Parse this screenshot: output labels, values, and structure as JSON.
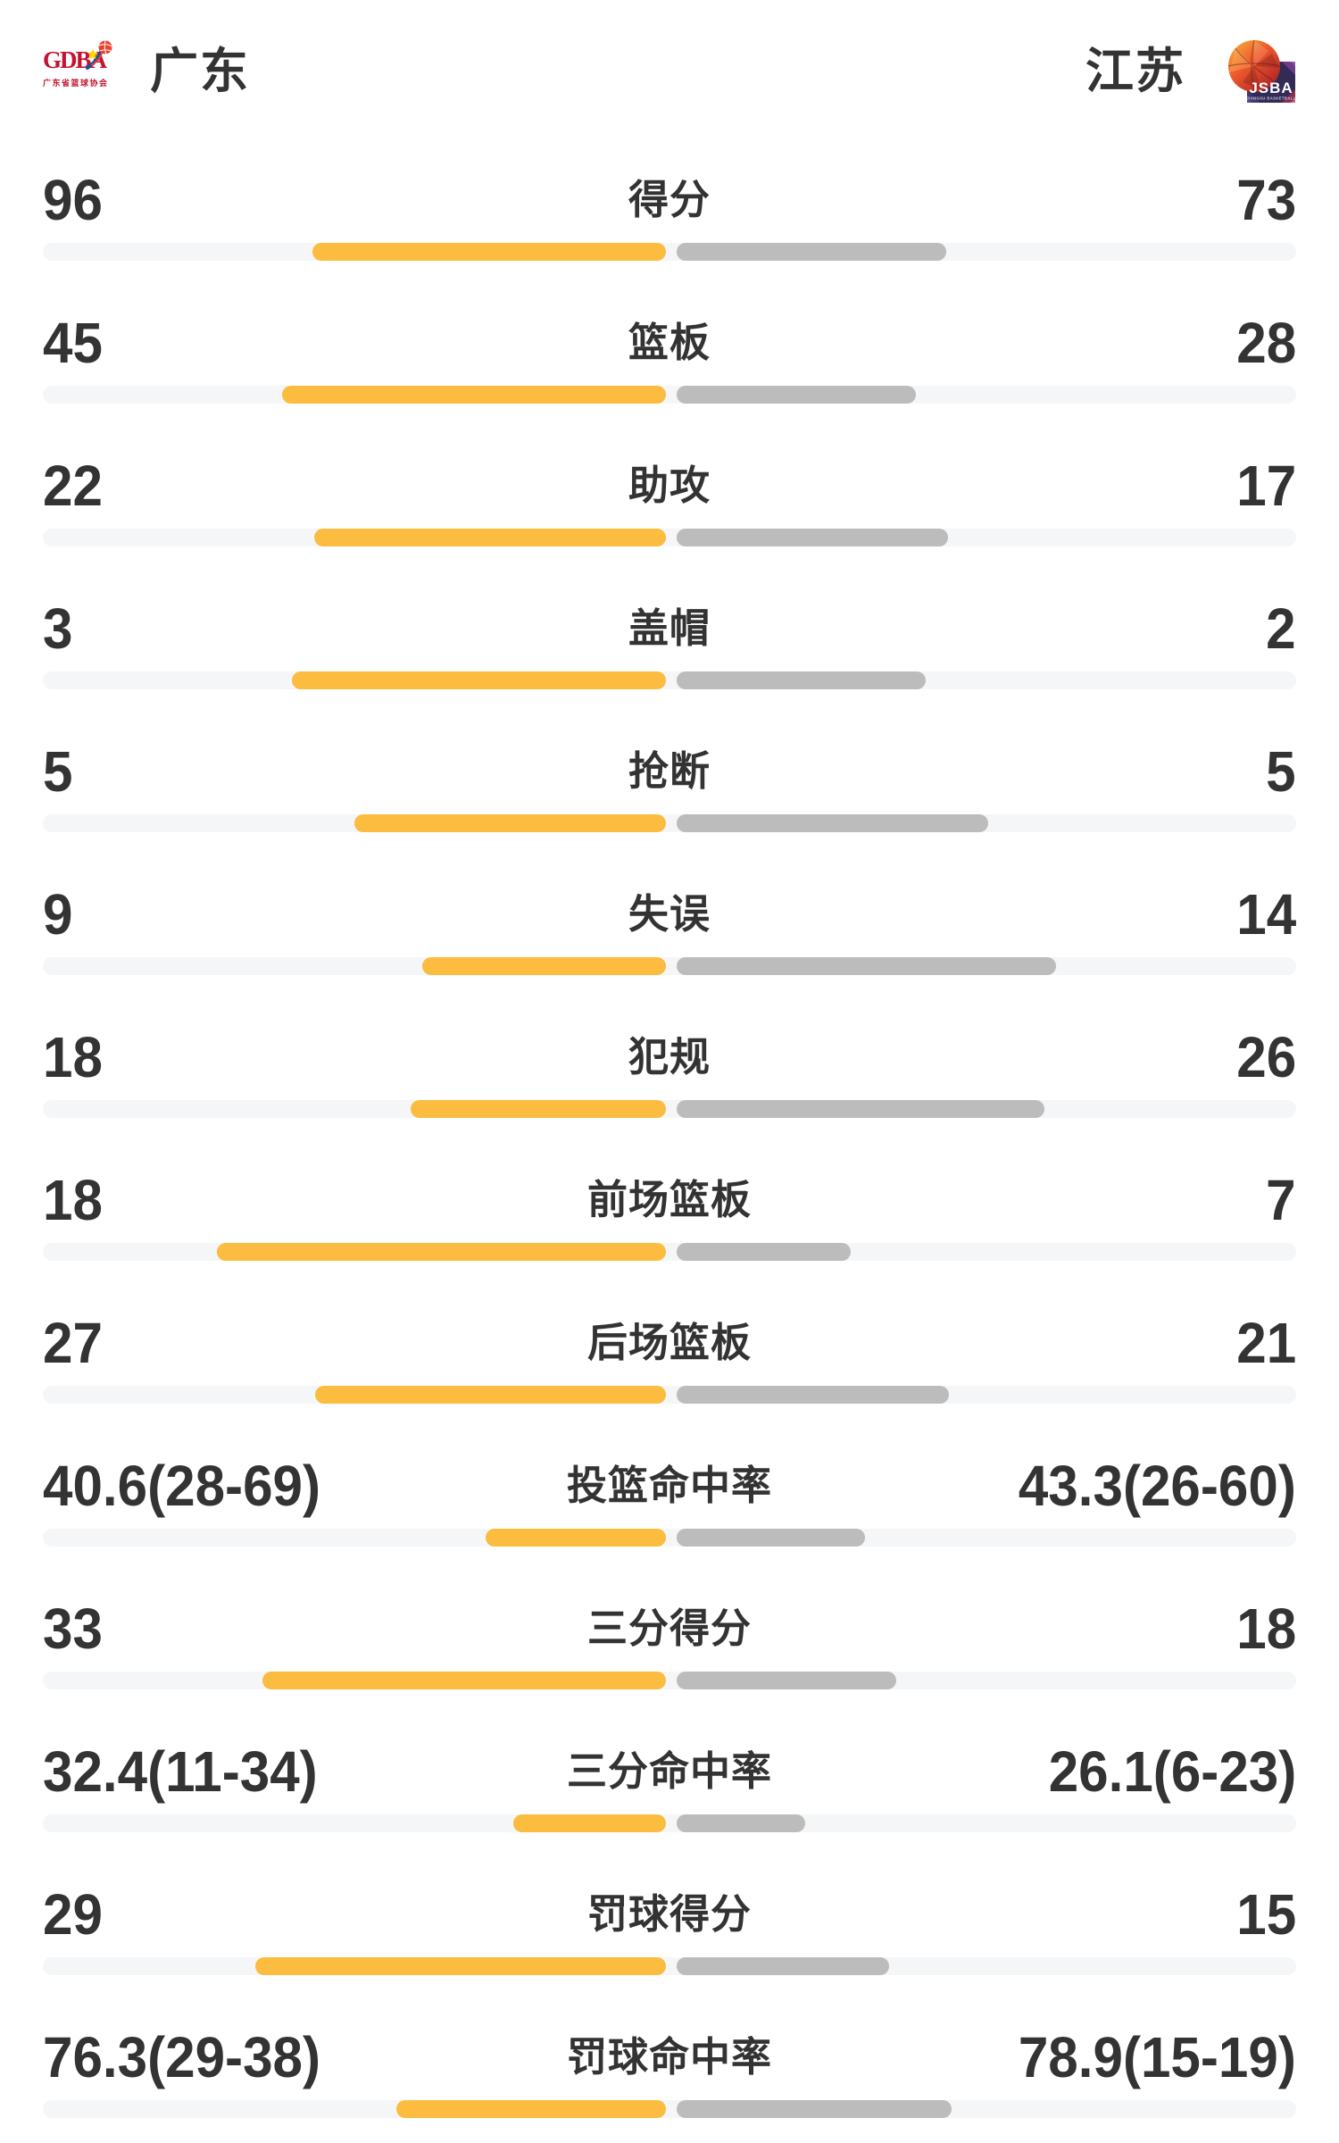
{
  "header": {
    "left_team": {
      "name": "广东",
      "logo_text": "GDBA",
      "logo_subtext": "广东省篮球协会"
    },
    "right_team": {
      "name": "江苏",
      "logo_text": "JSBA",
      "logo_subtext": "JIANGSU BASKETBALL"
    }
  },
  "colors": {
    "left_bar": "#fbbc3f",
    "right_bar": "#bcbcbc",
    "track": "#f5f6f8",
    "text": "#333333",
    "gdba_red": "#c41230",
    "jsba_navy": "#322b55"
  },
  "rows": [
    {
      "label": "得分",
      "left": "96",
      "right": "73",
      "left_value": 96,
      "right_value": 73,
      "kind": "count"
    },
    {
      "label": "篮板",
      "left": "45",
      "right": "28",
      "left_value": 45,
      "right_value": 28,
      "kind": "count"
    },
    {
      "label": "助攻",
      "left": "22",
      "right": "17",
      "left_value": 22,
      "right_value": 17,
      "kind": "count"
    },
    {
      "label": "盖帽",
      "left": "3",
      "right": "2",
      "left_value": 3,
      "right_value": 2,
      "kind": "count"
    },
    {
      "label": "抢断",
      "left": "5",
      "right": "5",
      "left_value": 5,
      "right_value": 5,
      "kind": "count"
    },
    {
      "label": "失误",
      "left": "9",
      "right": "14",
      "left_value": 9,
      "right_value": 14,
      "kind": "count"
    },
    {
      "label": "犯规",
      "left": "18",
      "right": "26",
      "left_value": 18,
      "right_value": 26,
      "kind": "count"
    },
    {
      "label": "前场篮板",
      "left": "18",
      "right": "7",
      "left_value": 18,
      "right_value": 7,
      "kind": "count"
    },
    {
      "label": "后场篮板",
      "left": "27",
      "right": "21",
      "left_value": 27,
      "right_value": 21,
      "kind": "count"
    },
    {
      "label": "投篮命中率",
      "left": "40.6(28-69)",
      "right": "43.3(26-60)",
      "left_value": 40.6,
      "right_value": 43.3,
      "kind": "percent"
    },
    {
      "label": "三分得分",
      "left": "33",
      "right": "18",
      "left_value": 33,
      "right_value": 18,
      "kind": "count"
    },
    {
      "label": "三分命中率",
      "left": "32.4(11-34)",
      "right": "26.1(6-23)",
      "left_value": 32.4,
      "right_value": 26.1,
      "kind": "percent"
    },
    {
      "label": "罚球得分",
      "left": "29",
      "right": "15",
      "left_value": 29,
      "right_value": 15,
      "kind": "count"
    },
    {
      "label": "罚球命中率",
      "left": "76.3(29-38)",
      "right": "78.9(15-19)",
      "left_value": 76.3,
      "right_value": 78.9,
      "kind": "percent"
    }
  ],
  "chart_data": {
    "type": "bar",
    "orientation": "bilateral-horizontal",
    "categories": [
      "得分",
      "篮板",
      "助攻",
      "盖帽",
      "抢断",
      "失误",
      "犯规",
      "前场篮板",
      "后场篮板",
      "投篮命中率",
      "三分得分",
      "三分命中率",
      "罚球得分",
      "罚球命中率"
    ],
    "series": [
      {
        "name": "广东",
        "values": [
          96,
          45,
          22,
          3,
          5,
          9,
          18,
          18,
          27,
          40.6,
          33,
          32.4,
          29,
          76.3
        ]
      },
      {
        "name": "江苏",
        "values": [
          73,
          28,
          17,
          2,
          5,
          14,
          26,
          7,
          21,
          43.3,
          18,
          26.1,
          15,
          78.9
        ]
      }
    ],
    "made_attempt_detail": {
      "投篮命中率": {
        "广东": "28-69",
        "江苏": "26-60"
      },
      "三分命中率": {
        "广东": "11-34",
        "江苏": "6-23"
      },
      "罚球命中率": {
        "广东": "29-38",
        "江苏": "15-19"
      }
    },
    "bar_rule": "count rows: width = value/(left+right) of half-track; percent rows: width = value/(value+100) of half-track",
    "legend_position": "none",
    "grid": false
  }
}
